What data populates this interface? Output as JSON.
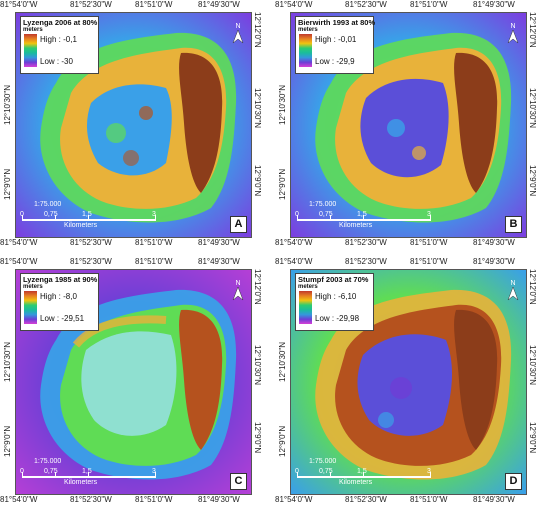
{
  "coords": {
    "lon": [
      "81°54'0\"W",
      "81°52'30\"W",
      "81°51'0\"W",
      "81°49'30\"W"
    ],
    "lat_left": [
      "12°10'30\"N",
      "12°9'0\"N"
    ],
    "lat_right": [
      "12°12'0\"N",
      "12°10'30\"N",
      "12°9'0\"N"
    ]
  },
  "panels": [
    {
      "id": "A",
      "title": "Lyzenga 2006 at 80%",
      "units": "meters",
      "high": "High : -0,1",
      "low": "Low : -30",
      "letter": "A"
    },
    {
      "id": "B",
      "title": "Bierwirth 1993 at 80%",
      "units": "meters",
      "high": "High : -0,01",
      "low": "Low : -29,9",
      "letter": "B"
    },
    {
      "id": "C",
      "title": "Lyzenga 1985 at 90%",
      "units": "meters",
      "high": "High : -8,0",
      "low": "Low : -29,51",
      "letter": "C"
    },
    {
      "id": "D",
      "title": "Stumpf 2003 at 70%",
      "units": "meters",
      "high": "High : -6,10",
      "low": "Low : -29,98",
      "letter": "D"
    }
  ],
  "scalebar": {
    "ratio": "1:75.000",
    "ticks": [
      "0",
      "0,75",
      "1,5",
      "3"
    ],
    "unit": "Kilometers"
  },
  "north_label": "N",
  "colors": {
    "deep": "#7b3fe0",
    "mid_deep": "#3aa0e8",
    "mid": "#39d07a",
    "shallow": "#e8b23a",
    "very_shallow": "#b5521e",
    "land": "#8c3d1a"
  }
}
